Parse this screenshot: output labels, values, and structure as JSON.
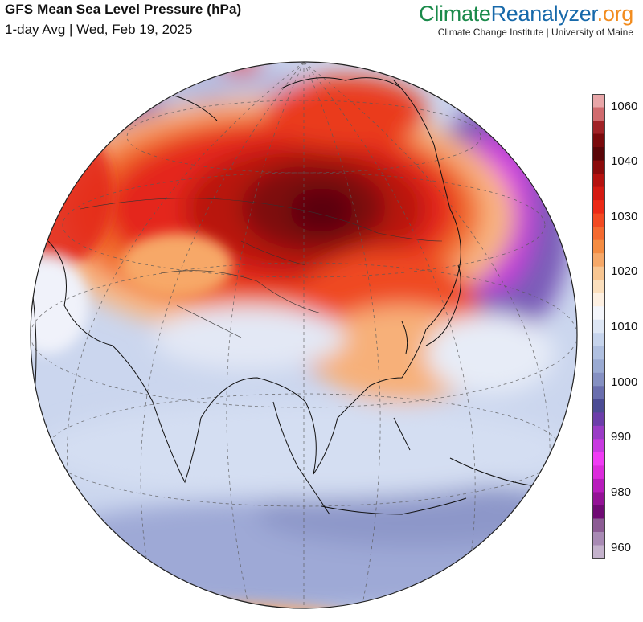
{
  "header": {
    "title": "GFS Mean Sea Level Pressure (hPa)",
    "subtitle": "1-day Avg | Wed, Feb 19, 2025"
  },
  "brand": {
    "name_part1": "Climate",
    "name_part2": "Reanalyzer",
    "name_part3": ".org",
    "tagline": "Climate Change Institute | University of Maine",
    "colors": {
      "part1": "#1a8a4a",
      "part2": "#1769aa",
      "part3": "#f28c1e"
    }
  },
  "map": {
    "projection": "orthographic",
    "variable": "mean sea level pressure",
    "units": "hPa"
  },
  "colorbar": {
    "ticks": [
      "1060",
      "1040",
      "1030",
      "1020",
      "1010",
      "1000",
      "990",
      "980",
      "960"
    ],
    "range": [
      960,
      1060
    ],
    "colors": [
      "#e8a6a8",
      "#d06b6e",
      "#a02226",
      "#7a0a0c",
      "#5a0608",
      "#8b0b0b",
      "#b5120f",
      "#d41a12",
      "#ec2a16",
      "#f24a22",
      "#f46a30",
      "#f48c42",
      "#f6a868",
      "#f8c692",
      "#fbdfbd",
      "#fdf0e2",
      "#f4f6fb",
      "#dde6f4",
      "#c6d4ec",
      "#b0c0e0",
      "#9aaad2",
      "#8590c2",
      "#6a6eae",
      "#4c4c94",
      "#6c3eaa",
      "#9a3cc6",
      "#c83ae0",
      "#f03cf4",
      "#dc2cdc",
      "#b81cbc",
      "#941296",
      "#700b74",
      "#8c5c94",
      "#a88ab4",
      "#c4b2cc"
    ]
  }
}
